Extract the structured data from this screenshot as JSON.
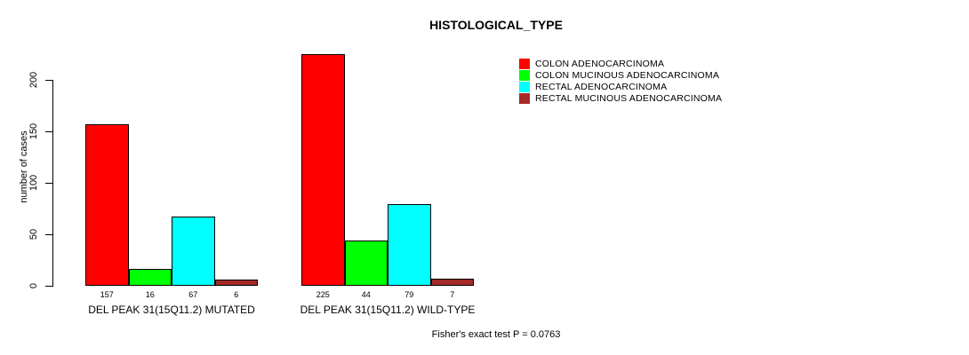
{
  "chart_data": {
    "type": "bar",
    "title": "HISTOLOGICAL_TYPE",
    "ylabel": "number of cases",
    "xlabel": "",
    "ylim": [
      0,
      230
    ],
    "yticks": [
      0,
      50,
      100,
      150,
      200
    ],
    "grid": false,
    "legend_position": "right",
    "categories": [
      "DEL PEAK 31(15Q11.2) MUTATED",
      "DEL PEAK 31(15Q11.2) WILD-TYPE"
    ],
    "series": [
      {
        "name": "COLON ADENOCARCINOMA",
        "color": "#ff0000",
        "values": [
          157,
          225
        ]
      },
      {
        "name": "COLON MUCINOUS ADENOCARCINOMA",
        "color": "#00ff00",
        "values": [
          16,
          44
        ]
      },
      {
        "name": "RECTAL ADENOCARCINOMA",
        "color": "#00ffff",
        "values": [
          67,
          79
        ]
      },
      {
        "name": "RECTAL MUCINOUS ADENOCARCINOMA",
        "color": "#a52a2a",
        "values": [
          6,
          7
        ]
      }
    ],
    "bar_value_labels": [
      [
        157,
        16,
        67,
        6
      ],
      [
        225,
        44,
        79,
        7
      ]
    ],
    "annotation": "Fisher's exact test P = 0.0763"
  }
}
